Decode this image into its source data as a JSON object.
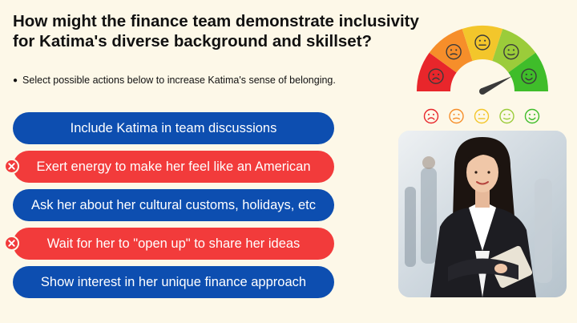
{
  "question": "How might the finance team demonstrate inclusivity for Katima's diverse background and skillset?",
  "instruction": "Select possible actions below to increase Katima's sense of belonging.",
  "options": [
    {
      "label": "Include Katima in team discussions",
      "state": "selected"
    },
    {
      "label": "Exert energy to make her feel like an American",
      "state": "incorrect"
    },
    {
      "label": "Ask her about her cultural customs, holidays, etc",
      "state": "selected"
    },
    {
      "label": "Wait for her to \"open up\" to share her ideas",
      "state": "incorrect"
    },
    {
      "label": "Show interest in her unique finance approach",
      "state": "selected"
    }
  ],
  "gauge": {
    "level": 0.85,
    "segments": [
      {
        "color": "#e8262b",
        "face": "frown"
      },
      {
        "color": "#f68e2a",
        "face": "sad"
      },
      {
        "color": "#f3c62b",
        "face": "neutral"
      },
      {
        "color": "#9bcc3a",
        "face": "slight-smile"
      },
      {
        "color": "#3fbd2a",
        "face": "smile"
      }
    ]
  },
  "face_row_colors": [
    "#e8262b",
    "#f68e2a",
    "#f3c62b",
    "#9bcc3a",
    "#3fbd2a"
  ],
  "colors": {
    "background": "#fdf8e8",
    "correct_blue": "#0d4eb0",
    "incorrect_red": "#f23b3b"
  },
  "icons": {
    "incorrect": "x-icon",
    "gauge_needle": "needle-icon"
  }
}
